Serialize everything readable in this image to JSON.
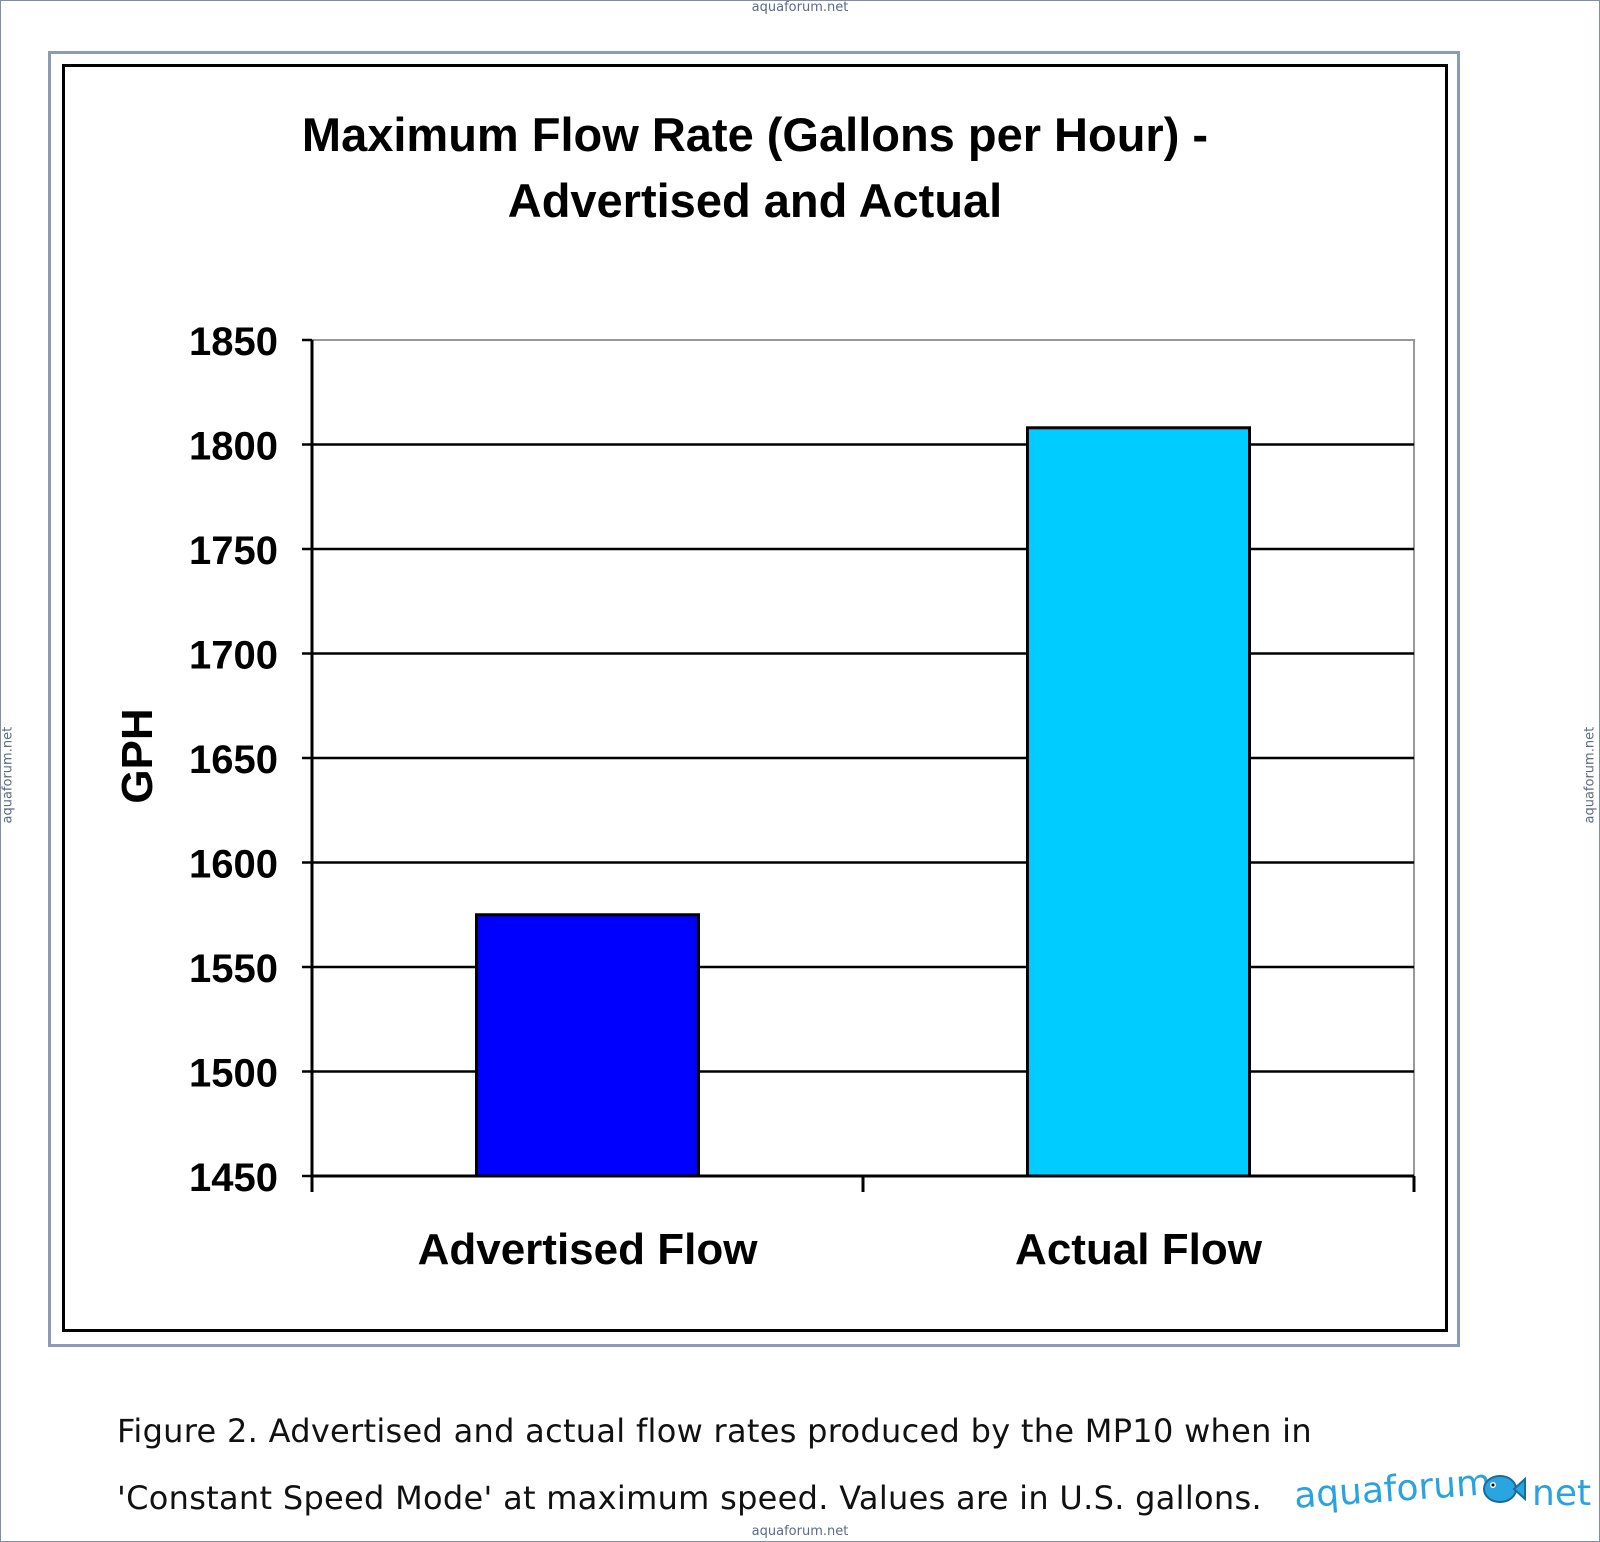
{
  "watermark": "aquaforum.net",
  "chart_data": {
    "type": "bar",
    "title_line1": "Maximum Flow Rate (Gallons per Hour) -",
    "title_line2": "Advertised and Actual",
    "xlabel": "",
    "ylabel": "GPH",
    "categories": [
      "Advertised Flow",
      "Actual Flow"
    ],
    "values": [
      1575,
      1808
    ],
    "ylim": [
      1450,
      1850
    ],
    "yticks": [
      1450,
      1500,
      1550,
      1600,
      1650,
      1700,
      1750,
      1800,
      1850
    ],
    "colors": [
      "#0000ff",
      "#00ccff"
    ],
    "grid": true,
    "legend": "none"
  },
  "caption": {
    "line1": "Figure 2. Advertised and actual flow rates produced by the MP10 when in",
    "line2": "'Constant Speed Mode' at maximum speed. Values are in U.S. gallons."
  },
  "brand": {
    "left": "aquaforum",
    "right": "net",
    "logo_icon": "fish-logo-icon"
  }
}
